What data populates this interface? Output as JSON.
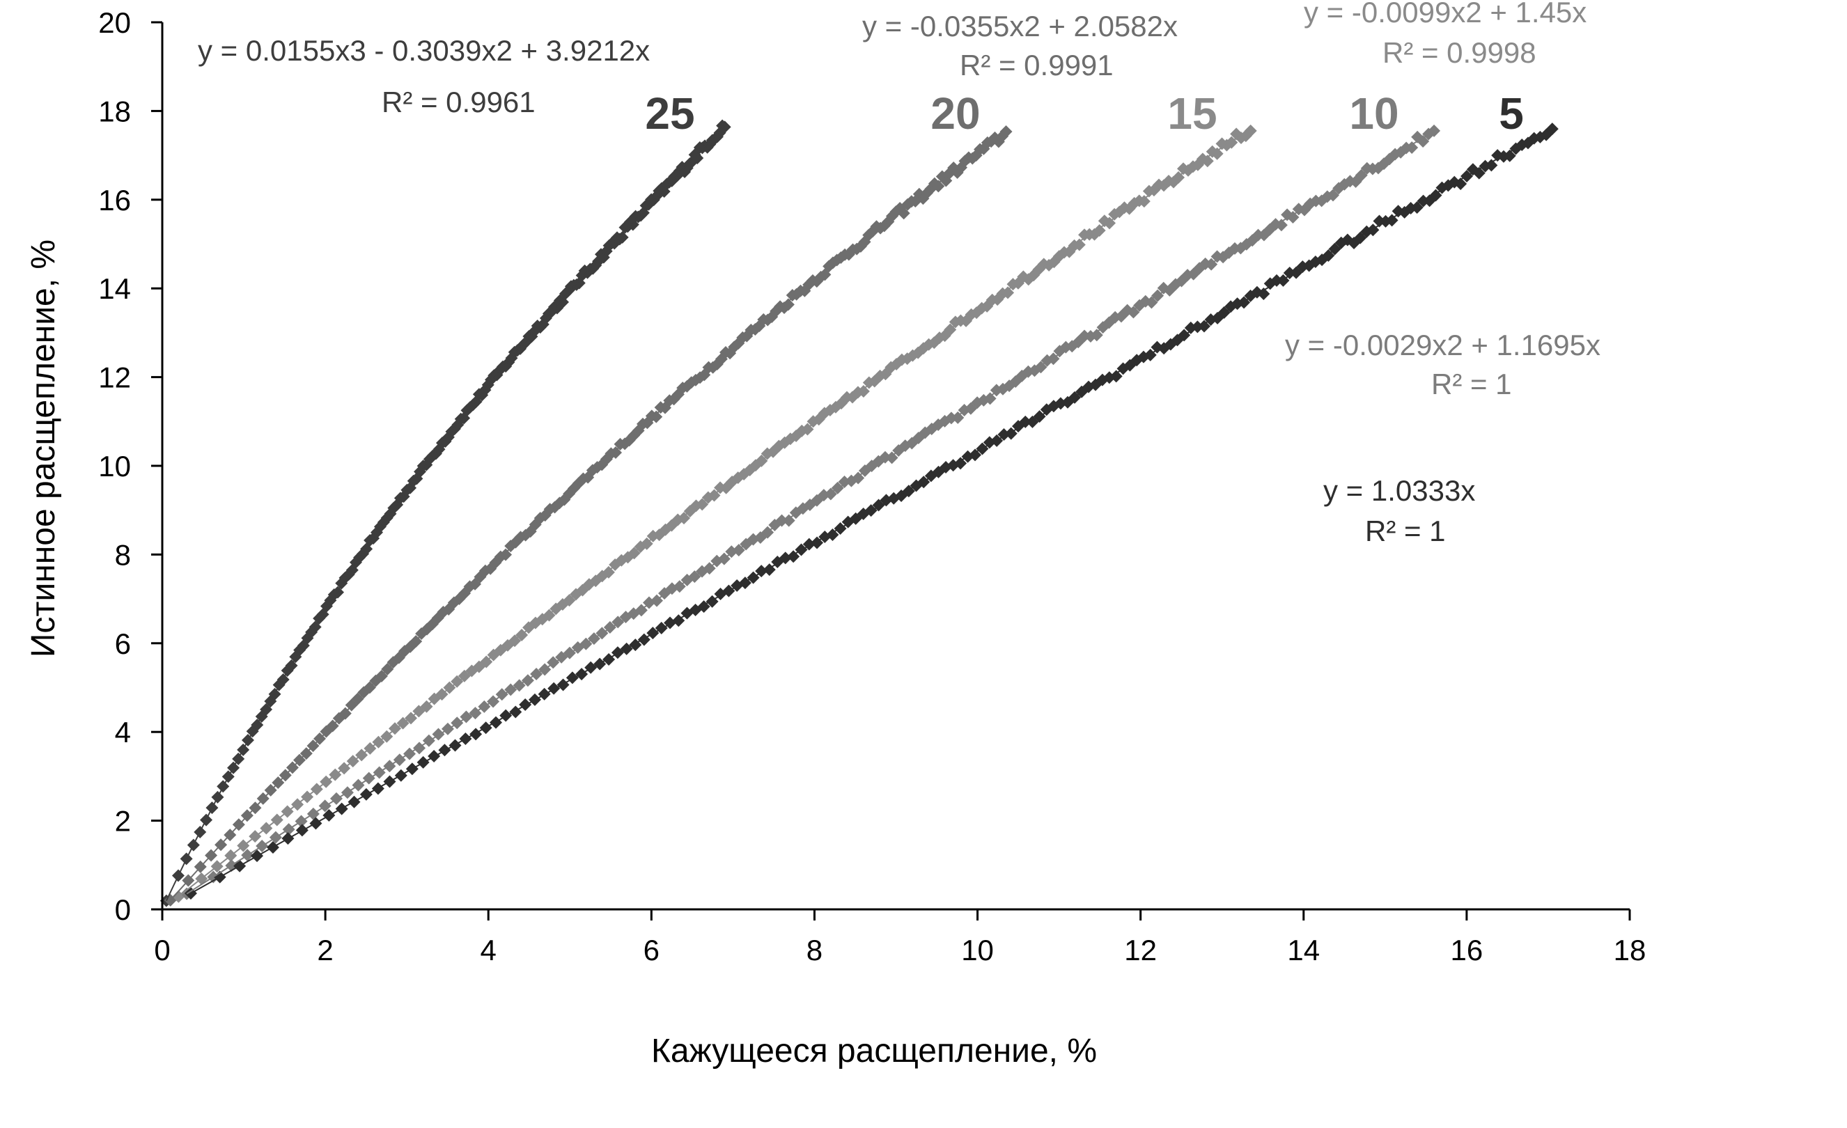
{
  "chart_data": {
    "type": "scatter",
    "title": "",
    "xlabel": "Кажущееся расщепление, %",
    "ylabel": "Истинное расщепление, %",
    "xlim": [
      0,
      18
    ],
    "ylim": [
      0,
      20
    ],
    "xticks": [
      "0",
      "2",
      "4",
      "6",
      "8",
      "10",
      "12",
      "14",
      "16",
      "18"
    ],
    "yticks": [
      "0",
      "2",
      "4",
      "6",
      "8",
      "10",
      "12",
      "14",
      "16",
      "18",
      "20"
    ],
    "grid": false,
    "legend": "none",
    "series": [
      {
        "name": "25",
        "color": "#3d3d3d",
        "x_range": [
          0.05,
          6.9
        ],
        "fit": {
          "type": "poly3",
          "a3": 0.0155,
          "a2": -0.3039,
          "a1": 3.9212
        },
        "equation": "y = 0.0155x3    - 0.3039x2 + 3.9212x",
        "r2": "R² = 0.9961"
      },
      {
        "name": "20",
        "color": "#6e6e6e",
        "x_range": [
          0.1,
          10.35
        ],
        "fit": {
          "type": "poly2",
          "a2": -0.0355,
          "a1": 2.0582
        },
        "equation": "y =  -0.0355x2 + 2.0582x",
        "r2": "R² = 0.9991"
      },
      {
        "name": "15",
        "color": "#8a8a8a",
        "x_range": [
          0.2,
          13.35
        ],
        "fit": {
          "type": "poly2",
          "a2": -0.0099,
          "a1": 1.45
        },
        "equation": "y =  -0.0099x2 + 1.45x",
        "r2": "R² = 0.9998"
      },
      {
        "name": "10",
        "color": "#7c7c7c",
        "x_range": [
          0.3,
          15.6
        ],
        "fit": {
          "type": "poly2",
          "a2": -0.0029,
          "a1": 1.1695
        },
        "equation": "y =  -0.0029x2 + 1.1695x",
        "r2": "R² = 1"
      },
      {
        "name": "5",
        "color": "#2e2e2e",
        "x_range": [
          0.35,
          17.05
        ],
        "fit": {
          "type": "linear",
          "a1": 1.0333
        },
        "equation": "y = 1.0333x",
        "r2": "R² = 1"
      }
    ]
  }
}
